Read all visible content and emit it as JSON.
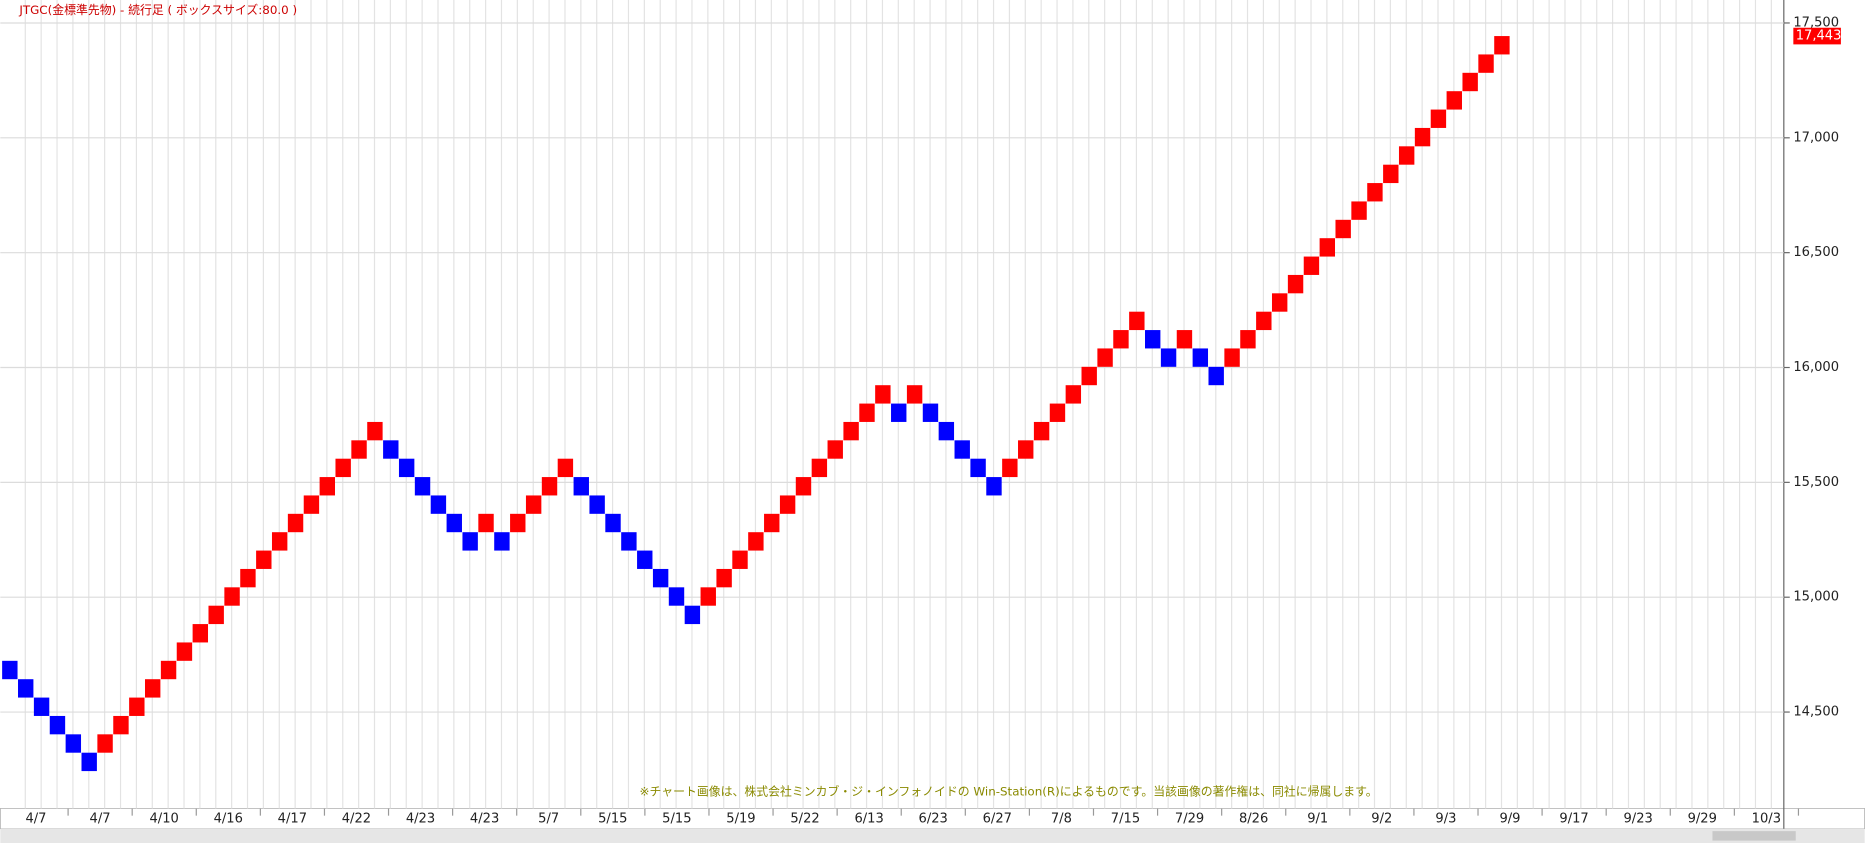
{
  "chart_data": {
    "type": "renko",
    "title": "JTGC(金標準先物) - 続行足 ( ボックスサイズ:80.0 )",
    "box_size": 80,
    "note": "※チャート画像は、株式会社ミンカブ・ジ・インフォノイドの Win-Station(R)によるものです。当該画像の著作権は、同社に帰属します。",
    "up_color": "#ff0000",
    "down_color": "#0000ff",
    "values": [
      14643,
      14563,
      14483,
      14403,
      14323,
      14243,
      14403,
      14483,
      14563,
      14643,
      14723,
      14803,
      14883,
      14963,
      15043,
      15123,
      15203,
      15283,
      15363,
      15443,
      15523,
      15603,
      15683,
      15763,
      15603,
      15523,
      15443,
      15363,
      15283,
      15203,
      15363,
      15203,
      15363,
      15443,
      15523,
      15603,
      15443,
      15363,
      15283,
      15203,
      15123,
      15043,
      14963,
      14883,
      15043,
      15123,
      15203,
      15283,
      15363,
      15443,
      15523,
      15603,
      15683,
      15763,
      15843,
      15923,
      15763,
      15923,
      15763,
      15683,
      15603,
      15523,
      15443,
      15603,
      15683,
      15763,
      15843,
      15923,
      16003,
      16083,
      16163,
      16243,
      16083,
      16003,
      16163,
      16003,
      15923,
      16083,
      16163,
      16243,
      16323,
      16403,
      16483,
      16563,
      16643,
      16723,
      16803,
      16883,
      16963,
      17043,
      17123,
      17203,
      17283,
      17363,
      17443
    ],
    "last_value": {
      "value": 17443,
      "label": "17,443"
    },
    "x_tick_labels": [
      "4/7",
      "4/7",
      "4/10",
      "4/16",
      "4/17",
      "4/22",
      "4/23",
      "4/23",
      "5/7",
      "5/15",
      "5/15",
      "5/19",
      "5/22",
      "6/13",
      "6/23",
      "6/27",
      "7/8",
      "7/15",
      "7/29",
      "8/26",
      "9/1",
      "9/2",
      "9/3",
      "9/9",
      "9/17",
      "9/23",
      "9/29",
      "10/3"
    ],
    "ylim": [
      14080,
      17600
    ],
    "yticks": [
      {
        "value": 14500,
        "label": "14,500"
      },
      {
        "value": 15000,
        "label": "15,000"
      },
      {
        "value": 15500,
        "label": "15,500"
      },
      {
        "value": 16000,
        "label": "16,000"
      },
      {
        "value": 16500,
        "label": "16,500"
      },
      {
        "value": 17000,
        "label": "17,000"
      },
      {
        "value": 17500,
        "label": "17,500"
      }
    ],
    "grid": true
  }
}
